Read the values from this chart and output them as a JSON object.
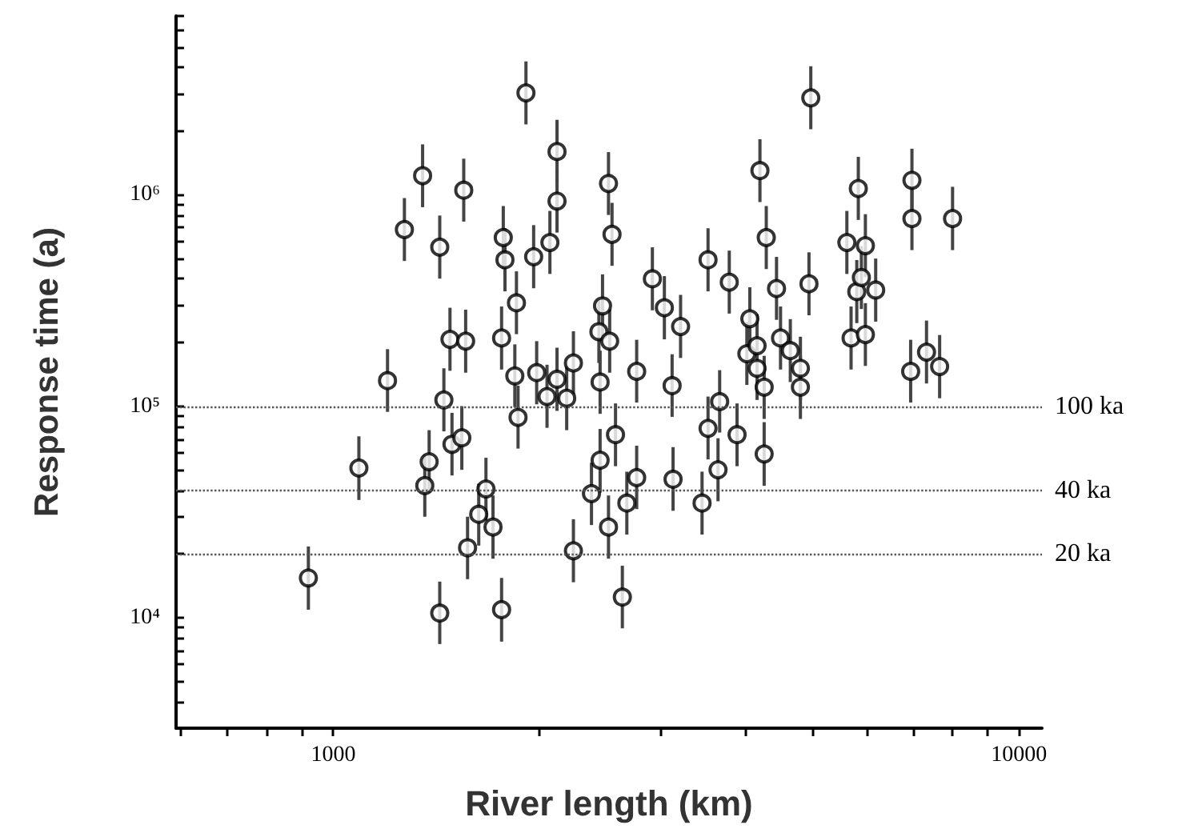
{
  "chart_data": {
    "type": "scatter",
    "xlabel": "River length (km)",
    "ylabel": "Response time (a)",
    "log": "xy",
    "marker": "circle",
    "color": "#000000",
    "grid": false,
    "xlim": [
      590,
      10800
    ],
    "ylim": [
      3000,
      7000000
    ],
    "xticks": [
      {
        "value": 600,
        "label": null
      },
      {
        "value": 700,
        "label": null
      },
      {
        "value": 800,
        "label": null
      },
      {
        "value": 900,
        "label": null
      },
      1000,
      {
        "value": 2000,
        "label": null
      },
      {
        "value": 3000,
        "label": null
      },
      {
        "value": 4000,
        "label": null
      },
      {
        "value": 5000,
        "label": null
      },
      {
        "value": 6000,
        "label": null
      },
      {
        "value": 7000,
        "label": null
      },
      {
        "value": 8000,
        "label": null
      },
      {
        "value": 9000,
        "label": null
      },
      10000
    ],
    "yticks": [
      {
        "value": 3000,
        "label": null
      },
      {
        "value": 4000,
        "label": null
      },
      {
        "value": 5000,
        "label": null
      },
      {
        "value": 6000,
        "label": null
      },
      {
        "value": 7000,
        "label": null
      },
      {
        "value": 8000,
        "label": null
      },
      {
        "value": 9000,
        "label": null
      },
      {
        "value": 10000,
        "label": "10⁴"
      },
      {
        "value": 20000,
        "label": null
      },
      {
        "value": 30000,
        "label": null
      },
      {
        "value": 40000,
        "label": null
      },
      {
        "value": 50000,
        "label": null
      },
      {
        "value": 60000,
        "label": null
      },
      {
        "value": 70000,
        "label": null
      },
      {
        "value": 80000,
        "label": null
      },
      {
        "value": 90000,
        "label": null
      },
      {
        "value": 100000,
        "label": "10⁵"
      },
      {
        "value": 200000,
        "label": null
      },
      {
        "value": 300000,
        "label": null
      },
      {
        "value": 400000,
        "label": null
      },
      {
        "value": 500000,
        "label": null
      },
      {
        "value": 600000,
        "label": null
      },
      {
        "value": 700000,
        "label": null
      },
      {
        "value": 800000,
        "label": null
      },
      {
        "value": 900000,
        "label": null
      },
      {
        "value": 1000000,
        "label": "10⁶"
      },
      {
        "value": 2000000,
        "label": null
      },
      {
        "value": 3000000,
        "label": null
      },
      {
        "value": 4000000,
        "label": null
      },
      {
        "value": 5000000,
        "label": null
      },
      {
        "value": 6000000,
        "label": null
      },
      {
        "value": 7000000,
        "label": null
      }
    ],
    "ref_lines": [
      {
        "axis": "y",
        "value": 100000,
        "label": "100 ka",
        "line_style": "dotted"
      },
      {
        "axis": "y",
        "value": 40000,
        "label": "40 ka",
        "line_style": "dotted"
      },
      {
        "axis": "y",
        "value": 20000,
        "label": "20 ka",
        "line_style": "dotted"
      }
    ],
    "x": [
      920,
      1090,
      1200,
      1270,
      1350,
      1430,
      1550,
      1480,
      1560,
      1450,
      1490,
      1540,
      1380,
      1360,
      1430,
      1570,
      1630,
      1670,
      1710,
      1760,
      1760,
      1770,
      1780,
      1840,
      1850,
      1860,
      1910,
      1960,
      1980,
      2050,
      2070,
      2120,
      2120,
      2120,
      2190,
      2240,
      2240,
      2380,
      2450,
      2450,
      2470,
      2440,
      2520,
      2530,
      2550,
      2520,
      2580,
      2640,
      2680,
      2770,
      2770,
      2920,
      3040,
      3120,
      3130,
      3210,
      3450,
      3520,
      3520,
      3640,
      3660,
      3780,
      3880,
      4010,
      4050,
      4150,
      4150,
      4190,
      4250,
      4250,
      4280,
      4430,
      4490,
      4640,
      4800,
      4800,
      4940,
      4970,
      5610,
      5690,
      5800,
      5830,
      5890,
      5970,
      5970,
      6180,
      6950,
      6980,
      6980,
      7330,
      7660,
      8000
    ],
    "values": [
      15400,
      51000,
      132000,
      684000,
      1230000,
      565000,
      1050000,
      207000,
      203000,
      107000,
      66000,
      70800,
      54600,
      42100,
      10500,
      21400,
      30800,
      40600,
      26800,
      10900,
      210000,
      627000,
      492000,
      139000,
      308000,
      88500,
      3030000,
      509000,
      144000,
      111000,
      594000,
      1600000,
      933000,
      134000,
      109000,
      160000,
      20700,
      38600,
      130000,
      55500,
      298000,
      225000,
      1130000,
      203000,
      649000,
      26800,
      73300,
      12500,
      34800,
      146000,
      45900,
      400000,
      292000,
      125000,
      45100,
      238000,
      34800,
      492000,
      78500,
      50000,
      105000,
      386000,
      73300,
      177000,
      259000,
      193000,
      151000,
      1300000,
      123000,
      59400,
      627000,
      360000,
      210000,
      183000,
      151000,
      123000,
      379000,
      2870000,
      594000,
      210000,
      348000,
      1070000,
      406000,
      574000,
      218000,
      354000,
      146000,
      1170000,
      771000,
      180000,
      154000,
      771000
    ],
    "errors": [
      [
        10900,
        21700
      ],
      [
        36000,
        72000
      ],
      [
        94000,
        186000
      ],
      [
        486000,
        964000
      ],
      [
        873000,
        1730000
      ],
      [
        401000,
        797000
      ],
      [
        746000,
        1480000
      ],
      [
        147000,
        292000
      ],
      [
        144000,
        286000
      ],
      [
        76000,
        151000
      ],
      [
        47000,
        93000
      ],
      [
        50000,
        100000
      ],
      [
        39000,
        77000
      ],
      [
        30000,
        59000
      ],
      [
        7500,
        14800
      ],
      [
        15200,
        30000
      ],
      [
        21900,
        43000
      ],
      [
        28800,
        57000
      ],
      [
        19000,
        37800
      ],
      [
        7700,
        15400
      ],
      [
        149000,
        296000
      ],
      [
        445000,
        884000
      ],
      [
        349000,
        694000
      ],
      [
        99000,
        196000
      ],
      [
        219000,
        434000
      ],
      [
        63000,
        125000
      ],
      [
        2150000,
        4270000
      ],
      [
        361000,
        718000
      ],
      [
        102000,
        203000
      ],
      [
        79000,
        157000
      ],
      [
        422000,
        838000
      ],
      [
        1140000,
        2260000
      ],
      [
        662000,
        1320000
      ],
      [
        95000,
        189000
      ],
      [
        77000,
        154000
      ],
      [
        114000,
        226000
      ],
      [
        14700,
        29200
      ],
      [
        27400,
        54000
      ],
      [
        92000,
        183000
      ],
      [
        39000,
        78000
      ],
      [
        212000,
        420000
      ],
      [
        160000,
        317000
      ],
      [
        802000,
        1590000
      ],
      [
        144000,
        286000
      ],
      [
        461000,
        915000
      ],
      [
        19000,
        37800
      ],
      [
        52000,
        103000
      ],
      [
        8900,
        17600
      ],
      [
        24700,
        49000
      ],
      [
        104000,
        206000
      ],
      [
        32600,
        65000
      ],
      [
        284000,
        564000
      ],
      [
        207000,
        412000
      ],
      [
        89000,
        176000
      ],
      [
        32000,
        64000
      ],
      [
        169000,
        336000
      ],
      [
        24700,
        49000
      ],
      [
        349000,
        694000
      ],
      [
        56000,
        111000
      ],
      [
        35500,
        70500
      ],
      [
        75000,
        148000
      ],
      [
        274000,
        544000
      ],
      [
        52000,
        103000
      ],
      [
        126000,
        250000
      ],
      [
        184000,
        365000
      ],
      [
        137000,
        272000
      ],
      [
        107000,
        213000
      ],
      [
        923000,
        1830000
      ],
      [
        87000,
        173000
      ],
      [
        42000,
        84000
      ],
      [
        445000,
        884000
      ],
      [
        256000,
        508000
      ],
      [
        149000,
        296000
      ],
      [
        130000,
        258000
      ],
      [
        107000,
        213000
      ],
      [
        87000,
        173000
      ],
      [
        269000,
        534000
      ],
      [
        2040000,
        4050000
      ],
      [
        422000,
        838000
      ],
      [
        149000,
        296000
      ],
      [
        247000,
        491000
      ],
      [
        760000,
        1510000
      ],
      [
        288000,
        572000
      ],
      [
        408000,
        809000
      ],
      [
        155000,
        307000
      ],
      [
        251000,
        499000
      ],
      [
        104000,
        206000
      ],
      [
        831000,
        1650000
      ],
      [
        547000,
        1090000
      ],
      [
        128000,
        254000
      ],
      [
        109000,
        217000
      ],
      [
        547000,
        1090000
      ]
    ]
  }
}
